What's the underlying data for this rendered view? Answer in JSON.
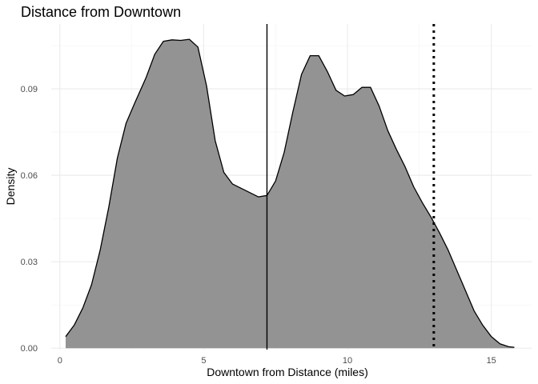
{
  "chart_data": {
    "type": "area",
    "title": "Distance from Downtown",
    "xlabel": "Downtown from Distance (miles)",
    "ylabel": "Density",
    "xlim": [
      -0.3,
      16.4
    ],
    "ylim": [
      -0.0005,
      0.1125
    ],
    "x_ticks": [
      0,
      5,
      10,
      15
    ],
    "x_tick_labels": [
      "0",
      "5",
      "10",
      "15"
    ],
    "y_ticks": [
      0.0,
      0.03,
      0.06,
      0.09
    ],
    "y_tick_labels": [
      "0.00",
      "0.03",
      "0.06",
      "0.09"
    ],
    "grid": true,
    "fill_color": "#939393",
    "line_color": "#000000",
    "series": [
      {
        "x": [
          0.2,
          0.5,
          0.8,
          1.1,
          1.4,
          1.7,
          2.0,
          2.3,
          2.6,
          3.0,
          3.3,
          3.6,
          3.9,
          4.2,
          4.5,
          4.8,
          5.1,
          5.4,
          5.7,
          6.0,
          6.3,
          6.6,
          6.9,
          7.2,
          7.5,
          7.8,
          8.1,
          8.4,
          8.7,
          9.0,
          9.3,
          9.6,
          9.9,
          10.2,
          10.5,
          10.8,
          11.1,
          11.4,
          11.7,
          12.0,
          12.3,
          12.6,
          12.9,
          13.2,
          13.5,
          13.8,
          14.1,
          14.4,
          14.7,
          15.0,
          15.3,
          15.6,
          15.8
        ],
        "y": [
          0.004,
          0.008,
          0.014,
          0.022,
          0.034,
          0.049,
          0.066,
          0.078,
          0.085,
          0.094,
          0.102,
          0.1065,
          0.107,
          0.1068,
          0.1072,
          0.1045,
          0.091,
          0.072,
          0.061,
          0.057,
          0.0555,
          0.054,
          0.0525,
          0.053,
          0.058,
          0.068,
          0.082,
          0.095,
          0.1015,
          0.1015,
          0.096,
          0.0895,
          0.0875,
          0.088,
          0.0905,
          0.0905,
          0.084,
          0.0755,
          0.069,
          0.063,
          0.056,
          0.0505,
          0.0455,
          0.04,
          0.034,
          0.027,
          0.02,
          0.013,
          0.008,
          0.004,
          0.0015,
          0.0005,
          0.0003
        ]
      }
    ],
    "vlines": [
      {
        "x": 7.2,
        "style": "solid"
      },
      {
        "x": 13.0,
        "style": "dotted"
      }
    ]
  }
}
